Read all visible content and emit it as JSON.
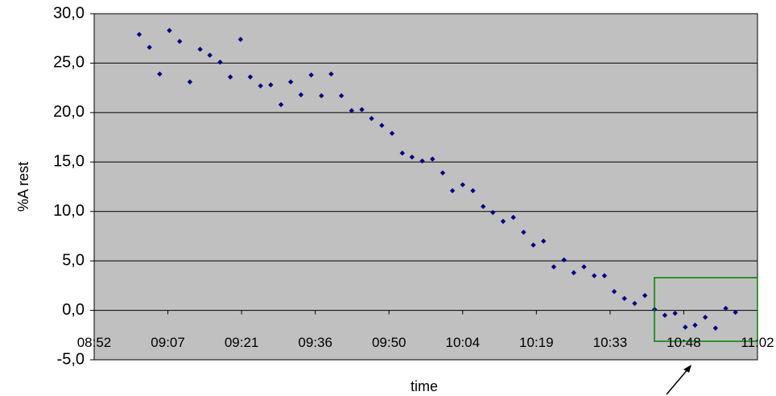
{
  "chart_data": {
    "type": "scatter",
    "x_label": "time",
    "y_label": "%A rest",
    "series": [
      {
        "color": "#000080",
        "x": [
          541.6,
          543.6,
          545.6,
          547.5,
          549.5,
          551.5,
          553.5,
          555.4,
          557.4,
          559.4,
          561.4,
          563.3,
          565.3,
          567.3,
          569.3,
          571.2,
          573.2,
          575.2,
          577.2,
          579.1,
          581.1,
          583.1,
          585.1,
          587.0,
          589.0,
          591.0,
          593.0,
          594.9,
          596.9,
          598.9,
          600.9,
          602.8,
          604.8,
          606.8,
          608.8,
          610.7,
          612.7,
          614.7,
          616.7,
          618.6,
          620.6,
          622.6,
          624.6,
          626.5,
          628.5,
          630.5,
          632.5,
          634.4,
          636.4,
          638.4,
          640.4,
          642.3,
          644.3,
          646.3,
          648.3,
          650.2,
          652.2,
          654.2,
          656.2,
          658.1
        ],
        "values": [
          27.9,
          26.6,
          23.9,
          28.3,
          27.2,
          23.1,
          26.4,
          25.8,
          25.1,
          23.6,
          27.4,
          23.6,
          22.7,
          22.8,
          20.8,
          23.1,
          21.8,
          23.8,
          21.7,
          23.9,
          21.7,
          20.2,
          20.3,
          19.4,
          18.7,
          17.9,
          15.9,
          15.5,
          15.1,
          15.3,
          13.9,
          12.1,
          12.7,
          12.1,
          10.5,
          9.9,
          9.0,
          9.4,
          7.9,
          6.6,
          7.0,
          4.4,
          5.1,
          3.8,
          4.4,
          3.5,
          3.5,
          1.9,
          1.2,
          0.7,
          1.5,
          0.1,
          -0.5,
          -0.3,
          -1.7,
          -1.5,
          -0.7,
          -1.8,
          0.2,
          -0.2
        ]
      }
    ],
    "xlim": [
      532.8,
      662.4
    ],
    "xticks": [
      {
        "value": 532.8,
        "label": "08:52"
      },
      {
        "value": 547.2,
        "label": "09:07"
      },
      {
        "value": 561.6,
        "label": "09:21"
      },
      {
        "value": 576,
        "label": "09:36"
      },
      {
        "value": 590.4,
        "label": "09:50"
      },
      {
        "value": 604.8,
        "label": "10:04"
      },
      {
        "value": 619.2,
        "label": "10:19"
      },
      {
        "value": 633.6,
        "label": "10:33"
      },
      {
        "value": 648,
        "label": "10:48"
      },
      {
        "value": 662.4,
        "label": "11:02"
      }
    ],
    "ylim": [
      -5,
      30
    ],
    "yticks": [
      {
        "value": -5,
        "label": "-5,0"
      },
      {
        "value": 0,
        "label": "0,0"
      },
      {
        "value": 5,
        "label": "5,0"
      },
      {
        "value": 10,
        "label": "10,0"
      },
      {
        "value": 15,
        "label": "15,0"
      },
      {
        "value": 20,
        "label": "20,0"
      },
      {
        "value": 25,
        "label": "25,0"
      },
      {
        "value": 30,
        "label": "30,0"
      }
    ],
    "grid": true
  }
}
